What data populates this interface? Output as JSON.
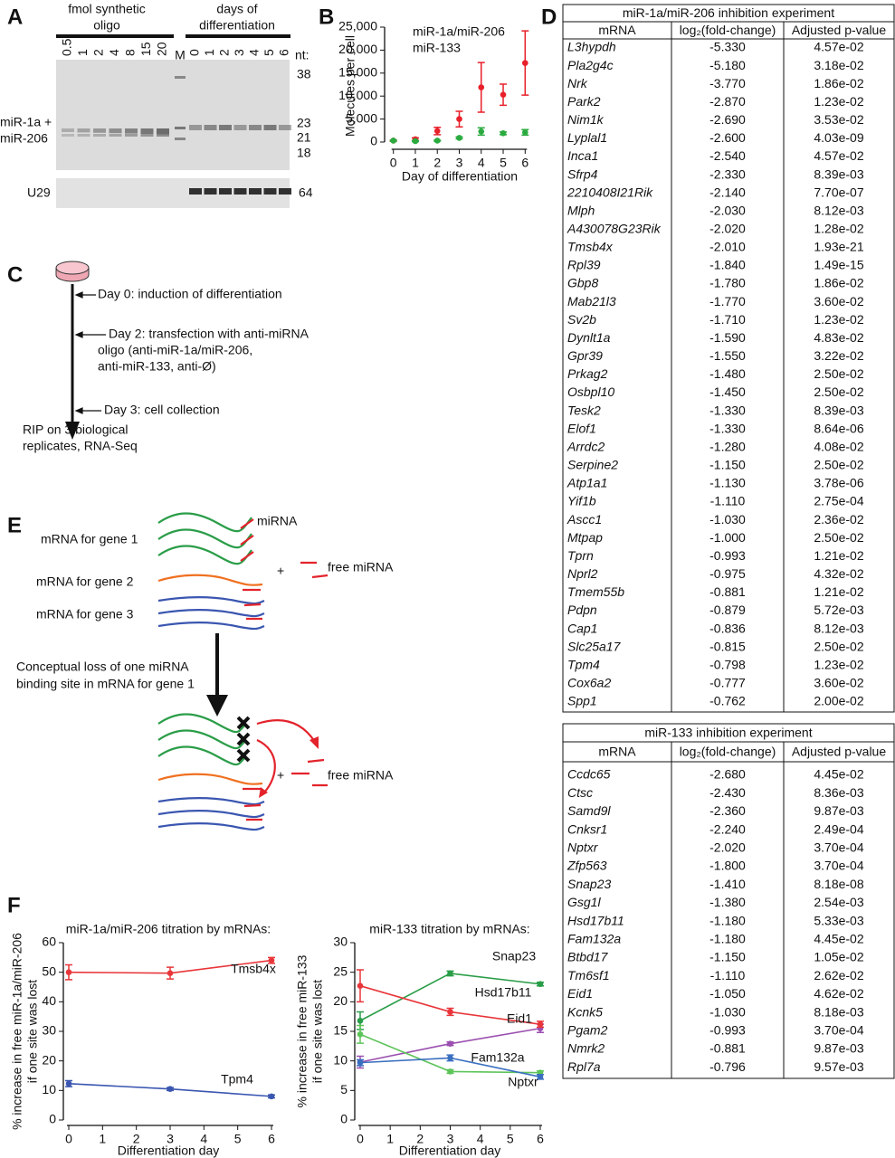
{
  "panel_a": {
    "label": "A",
    "header_left": [
      "fmol synthetic",
      "oligo"
    ],
    "header_right": [
      "days of",
      "differentiation"
    ],
    "lanes_oligo": [
      "0.5",
      "1",
      "2",
      "4",
      "8",
      "15",
      "20"
    ],
    "lane_marker": "M",
    "lanes_days": [
      "0",
      "1",
      "2",
      "3",
      "4",
      "5",
      "6"
    ],
    "nt_label": "nt:",
    "sizes": [
      "38",
      "23",
      "21",
      "18"
    ],
    "band_label": [
      "miR-1a +",
      "miR-206"
    ],
    "u29_label": "U29",
    "u29_size": "64"
  },
  "panel_c": {
    "label": "C",
    "day0": "Day 0: induction of differentiation",
    "day2": [
      "Day 2: transfection with anti-miRNA",
      "oligo (anti-miR-1a/miR-206,",
      "anti-miR-133, anti-Ø)"
    ],
    "day3": "Day 3: cell collection",
    "result": [
      "RIP on 3 biological",
      "replicates, RNA-Seq"
    ]
  },
  "panel_e": {
    "label": "E",
    "mirna": "miRNA",
    "gene1": "mRNA for gene 1",
    "gene2": "mRNA for gene 2",
    "gene3": "mRNA for gene 3",
    "plus": "+",
    "free_mirna": "free miRNA",
    "loss_text": [
      "Conceptual loss of one miRNA",
      "binding site in mRNA for gene 1"
    ]
  },
  "panel_d": {
    "label": "D",
    "tables": [
      {
        "title": "miR-1a/miR-206 inhibition experiment",
        "columns": [
          "mRNA",
          "log₂(fold-change)",
          "Adjusted p-value"
        ],
        "rows": [
          [
            "L3hypdh",
            "-5.330",
            "4.57e-02",
            "#1a1a1a"
          ],
          [
            "Pla2g4c",
            "-5.180",
            "3.18e-02",
            "#2e4fa3"
          ],
          [
            "Nrk",
            "-3.770",
            "1.86e-02",
            "#e3232b"
          ],
          [
            "Park2",
            "-2.870",
            "1.23e-02",
            "#2e4fa3"
          ],
          [
            "Nim1k",
            "-2.690",
            "3.53e-02",
            "#e3232b"
          ],
          [
            "Lyplal1",
            "-2.600",
            "4.03e-09",
            "#e3232b"
          ],
          [
            "Inca1",
            "-2.540",
            "4.57e-02",
            "#2e4fa3"
          ],
          [
            "Sfrp4",
            "-2.330",
            "8.39e-03",
            "#2e4fa3"
          ],
          [
            "2210408I21Rik",
            "-2.140",
            "7.70e-07",
            "#e3232b"
          ],
          [
            "Mlph",
            "-2.030",
            "8.12e-03",
            "#e3232b"
          ],
          [
            "A430078G23Rik",
            "-2.020",
            "1.28e-02",
            "#2e4fa3"
          ],
          [
            "Tmsb4x",
            "-2.010",
            "1.93e-21",
            "#e3232b"
          ],
          [
            "Rpl39",
            "-1.840",
            "1.49e-15",
            "#1a1a1a"
          ],
          [
            "Gbp8",
            "-1.780",
            "1.86e-02",
            "#e3232b"
          ],
          [
            "Mab21l3",
            "-1.770",
            "3.60e-02",
            "#e3232b"
          ],
          [
            "Sv2b",
            "-1.710",
            "1.23e-02",
            "#2e4fa3"
          ],
          [
            "Dynlt1a",
            "-1.590",
            "4.83e-02",
            "#e3232b"
          ],
          [
            "Gpr39",
            "-1.550",
            "3.22e-02",
            "#2e4fa3"
          ],
          [
            "Prkag2",
            "-1.480",
            "2.50e-02",
            "#2e4fa3"
          ],
          [
            "Osbpl10",
            "-1.450",
            "2.50e-02",
            "#2e4fa3"
          ],
          [
            "Tesk2",
            "-1.330",
            "8.39e-03",
            "#2e4fa3"
          ],
          [
            "Elof1",
            "-1.330",
            "8.64e-06",
            "#e3232b"
          ],
          [
            "Arrdc2",
            "-1.280",
            "4.08e-02",
            "#e3232b"
          ],
          [
            "Serpine2",
            "-1.150",
            "2.50e-02",
            "#e3232b"
          ],
          [
            "Atp1a1",
            "-1.130",
            "3.78e-06",
            "#1a1a1a"
          ],
          [
            "Yif1b",
            "-1.110",
            "2.75e-04",
            "#2e4fa3"
          ],
          [
            "Ascc1",
            "-1.030",
            "2.36e-02",
            "#e3232b"
          ],
          [
            "Mtpap",
            "-1.000",
            "2.50e-02",
            "#2e4fa3"
          ],
          [
            "Tprn",
            "-0.993",
            "1.21e-02",
            "#1a1a1a"
          ],
          [
            "Nprl2",
            "-0.975",
            "4.32e-02",
            "#1a1a1a"
          ],
          [
            "Tmem55b",
            "-0.881",
            "1.21e-02",
            "#e3232b"
          ],
          [
            "Pdpn",
            "-0.879",
            "5.72e-03",
            "#e3232b"
          ],
          [
            "Cap1",
            "-0.836",
            "8.12e-03",
            "#e3232b"
          ],
          [
            "Slc25a17",
            "-0.815",
            "2.50e-02",
            "#e3232b"
          ],
          [
            "Tpm4",
            "-0.798",
            "1.23e-02",
            "#e3232b"
          ],
          [
            "Cox6a2",
            "-0.777",
            "3.60e-02",
            "#1a1a1a"
          ],
          [
            "Spp1",
            "-0.762",
            "2.00e-02",
            "#2e4fa3"
          ]
        ]
      },
      {
        "title": "miR-133 inhibition experiment",
        "columns": [
          "mRNA",
          "log₂(fold-change)",
          "Adjusted p-value"
        ],
        "rows": [
          [
            "Ccdc65",
            "-2.680",
            "4.45e-02",
            "#1a1a1a"
          ],
          [
            "Ctsc",
            "-2.430",
            "8.36e-03",
            "#2e4fa3"
          ],
          [
            "Samd9l",
            "-2.360",
            "9.87e-03",
            "#1a1a1a"
          ],
          [
            "Cnksr1",
            "-2.240",
            "2.49e-04",
            "#2e4fa3"
          ],
          [
            "Nptxr",
            "-2.020",
            "3.70e-04",
            "#e3232b"
          ],
          [
            "Zfp563",
            "-1.800",
            "3.70e-04",
            "#e3232b"
          ],
          [
            "Snap23",
            "-1.410",
            "8.18e-08",
            "#2e4fa3"
          ],
          [
            "Gsg1l",
            "-1.380",
            "2.54e-03",
            "#2e4fa3"
          ],
          [
            "Hsd17b11",
            "-1.180",
            "5.33e-03",
            "#e3232b"
          ],
          [
            "Fam132a",
            "-1.180",
            "4.45e-02",
            "#2e4fa3"
          ],
          [
            "Btbd17",
            "-1.150",
            "1.05e-02",
            "#1a1a1a"
          ],
          [
            "Tm6sf1",
            "-1.110",
            "2.62e-02",
            "#2e4fa3"
          ],
          [
            "Eid1",
            "-1.050",
            "4.62e-02",
            "#e3232b"
          ],
          [
            "Kcnk5",
            "-1.030",
            "8.18e-03",
            "#1a1a1a"
          ],
          [
            "Pgam2",
            "-0.993",
            "3.70e-04",
            "#1a1a1a"
          ],
          [
            "Nmrk2",
            "-0.881",
            "9.87e-03",
            "#1a1a1a"
          ],
          [
            "Rpl7a",
            "-0.796",
            "9.57e-03",
            "#1a1a1a"
          ]
        ]
      }
    ]
  },
  "chart_data": [
    {
      "type": "scatter",
      "panel_label": "B",
      "xlabel": "Day of differentiation",
      "ylabel": "Molecules per cell",
      "x": [
        0,
        1,
        2,
        3,
        4,
        5,
        6
      ],
      "xlim": [
        -0.4,
        6.4
      ],
      "xticks": [
        0,
        1,
        2,
        3,
        4,
        5,
        6
      ],
      "ylim": [
        0,
        25000
      ],
      "yticks": [
        0,
        {
          "value": 5000,
          "label": "5,000"
        },
        {
          "value": 10000,
          "label": "10,000"
        },
        {
          "value": 15000,
          "label": "15,000"
        },
        {
          "value": 20000,
          "label": "20,000"
        },
        {
          "value": 25000,
          "label": "25,000"
        }
      ],
      "series": [
        {
          "name": "miR-1a/miR-206",
          "color": "#e8202a",
          "values": [
            300,
            600,
            2400,
            5000,
            11900,
            10300,
            17200
          ],
          "errors": [
            100,
            300,
            800,
            1700,
            5400,
            2300,
            7000
          ]
        },
        {
          "name": "miR-133",
          "color": "#2bab3f",
          "values": [
            300,
            200,
            300,
            900,
            2300,
            1900,
            2100
          ],
          "errors": [
            100,
            100,
            100,
            200,
            800,
            300,
            600
          ]
        }
      ]
    },
    {
      "type": "line",
      "panel_label": "F",
      "title": "miR-1a/miR-206 titration by mRNAs:",
      "xlabel": "Differentiation day",
      "ylabel": [
        "% increase in free miR-1a/miR-206",
        "if one site was lost"
      ],
      "x": [
        0,
        3,
        6
      ],
      "xlim": [
        0,
        6
      ],
      "xticks": [
        0,
        1,
        2,
        3,
        4,
        5,
        6
      ],
      "ylim": [
        0,
        60
      ],
      "yticks": [
        0,
        10,
        20,
        30,
        40,
        50,
        60
      ],
      "series": [
        {
          "name": "Tmsb4x",
          "color": "#e8363a",
          "values": [
            50,
            49.7,
            54
          ],
          "errors": [
            2.5,
            2,
            1
          ]
        },
        {
          "name": "Tpm4",
          "color": "#3a56b0",
          "values": [
            12.3,
            10.5,
            8
          ],
          "errors": [
            1,
            0.5,
            0.5
          ]
        }
      ]
    },
    {
      "type": "line",
      "title": "miR-133 titration by mRNAs:",
      "xlabel": "Differentiation day",
      "ylabel": [
        "% increase in free miR-133",
        "if one site was lost"
      ],
      "x": [
        0,
        3,
        6
      ],
      "xlim": [
        0,
        6
      ],
      "xticks": [
        0,
        1,
        2,
        3,
        4,
        5,
        6
      ],
      "ylim": [
        0,
        30
      ],
      "yticks": [
        0,
        5,
        10,
        15,
        20,
        25,
        30
      ],
      "series": [
        {
          "name": "Snap23",
          "color": "#2a9d48",
          "values": [
            16.8,
            24.8,
            23
          ],
          "errors": [
            1.5,
            0.4,
            0.3
          ]
        },
        {
          "name": "Hsd17b11",
          "color": "#9b4fb0",
          "values": [
            9.8,
            12.9,
            15.5
          ],
          "errors": [
            1,
            0.3,
            0.7
          ]
        },
        {
          "name": "Eid1",
          "color": "#e8363a",
          "values": [
            22.7,
            18.3,
            16.2
          ],
          "errors": [
            2.7,
            0.6,
            0.5
          ]
        },
        {
          "name": "Fam132a",
          "color": "#5ec45a",
          "values": [
            14.5,
            8.2,
            8
          ],
          "errors": [
            1.5,
            0.3,
            0.3
          ]
        },
        {
          "name": "Nptxr",
          "color": "#3a6fc0",
          "values": [
            9.7,
            10.5,
            7.3
          ],
          "errors": [
            0.5,
            0.5,
            0.4
          ]
        }
      ]
    }
  ]
}
